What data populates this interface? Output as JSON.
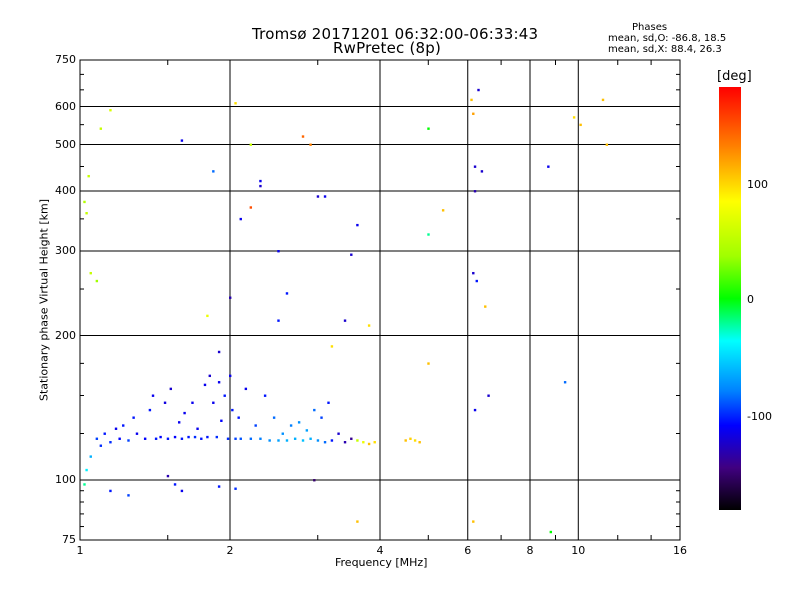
{
  "chart_data": {
    "type": "scatter",
    "title": "Tromsø 20171201 06:32:00-06:33:43",
    "subtitle": "RwPretec (8p)",
    "xlabel": "Frequency [MHz]",
    "ylabel": "Stationary phase Virtual Height [km]",
    "x_scale": "log",
    "y_scale": "log",
    "xlim": [
      1,
      16
    ],
    "ylim": [
      75,
      750
    ],
    "x_ticks": [
      "1",
      "2",
      "4",
      "6",
      "8",
      "10",
      "16"
    ],
    "y_ticks": [
      "750",
      "600",
      "500",
      "400",
      "300",
      "200",
      "100",
      "75"
    ],
    "grid": true,
    "phases": {
      "heading": "Phases",
      "line_o": "mean, sd,O: -86.8, 18.5",
      "line_x": "mean, sd,X:  88.4, 26.3"
    },
    "colorbar": {
      "label": "[deg]",
      "range": [
        -180,
        180
      ],
      "ticks": [
        "100",
        "0",
        "-100"
      ],
      "colors": [
        "#ff0000",
        "#ff8000",
        "#ffff00",
        "#00ff00",
        "#00ffff",
        "#0080ff",
        "#0000ff",
        "#000000"
      ]
    },
    "points": [
      [
        1.02,
        98,
        -20
      ],
      [
        1.03,
        105,
        -40
      ],
      [
        1.05,
        112,
        -60
      ],
      [
        1.08,
        122,
        -90
      ],
      [
        1.1,
        118,
        -95
      ],
      [
        1.12,
        125,
        -100
      ],
      [
        1.15,
        120,
        -95
      ],
      [
        1.18,
        128,
        -110
      ],
      [
        1.2,
        122,
        -105
      ],
      [
        1.22,
        130,
        -100
      ],
      [
        1.25,
        121,
        -90
      ],
      [
        1.28,
        135,
        -100
      ],
      [
        1.3,
        125,
        -110
      ],
      [
        1.35,
        122,
        -105
      ],
      [
        1.38,
        140,
        -100
      ],
      [
        1.4,
        150,
        -110
      ],
      [
        1.42,
        122,
        -100
      ],
      [
        1.45,
        123,
        -105
      ],
      [
        1.48,
        145,
        -115
      ],
      [
        1.5,
        122,
        -100
      ],
      [
        1.52,
        155,
        -120
      ],
      [
        1.55,
        123,
        -105
      ],
      [
        1.58,
        132,
        -110
      ],
      [
        1.6,
        122,
        -100
      ],
      [
        1.62,
        138,
        -110
      ],
      [
        1.65,
        123,
        -100
      ],
      [
        1.68,
        145,
        -110
      ],
      [
        1.7,
        123,
        -95
      ],
      [
        1.72,
        128,
        -110
      ],
      [
        1.75,
        122,
        -100
      ],
      [
        1.78,
        158,
        -110
      ],
      [
        1.8,
        123,
        -100
      ],
      [
        1.82,
        165,
        -120
      ],
      [
        1.85,
        145,
        -110
      ],
      [
        1.88,
        123,
        -95
      ],
      [
        1.9,
        160,
        -110
      ],
      [
        1.92,
        133,
        -105
      ],
      [
        1.95,
        150,
        -100
      ],
      [
        1.98,
        122,
        -95
      ],
      [
        2.0,
        165,
        -110
      ],
      [
        2.02,
        140,
        -100
      ],
      [
        2.05,
        122,
        -90
      ],
      [
        2.08,
        135,
        -100
      ],
      [
        2.1,
        122,
        -85
      ],
      [
        2.15,
        155,
        -110
      ],
      [
        2.2,
        122,
        -80
      ],
      [
        2.25,
        130,
        -90
      ],
      [
        2.3,
        122,
        -75
      ],
      [
        2.35,
        150,
        -100
      ],
      [
        2.4,
        121,
        -70
      ],
      [
        2.45,
        135,
        -80
      ],
      [
        2.5,
        121,
        -65
      ],
      [
        2.55,
        125,
        -70
      ],
      [
        2.6,
        121,
        -60
      ],
      [
        2.65,
        130,
        -75
      ],
      [
        2.7,
        122,
        -60
      ],
      [
        2.75,
        132,
        -70
      ],
      [
        2.8,
        121,
        -55
      ],
      [
        2.85,
        127,
        -65
      ],
      [
        2.9,
        122,
        -60
      ],
      [
        2.95,
        140,
        -80
      ],
      [
        3.0,
        121,
        -70
      ],
      [
        3.05,
        135,
        -90
      ],
      [
        3.1,
        120,
        -80
      ],
      [
        3.15,
        145,
        -100
      ],
      [
        3.2,
        121,
        -100
      ],
      [
        3.3,
        125,
        -120
      ],
      [
        3.4,
        120,
        -130
      ],
      [
        3.5,
        122,
        -140
      ],
      [
        3.6,
        121,
        60
      ],
      [
        3.7,
        120,
        80
      ],
      [
        3.8,
        119,
        110
      ],
      [
        3.9,
        120,
        100
      ],
      [
        4.5,
        121,
        110
      ],
      [
        4.6,
        122,
        105
      ],
      [
        4.7,
        121,
        100
      ],
      [
        4.8,
        120,
        110
      ],
      [
        1.55,
        98,
        -100
      ],
      [
        1.6,
        95,
        -110
      ],
      [
        1.9,
        97,
        -100
      ],
      [
        2.05,
        96,
        -95
      ],
      [
        1.25,
        93,
        -90
      ],
      [
        1.15,
        95,
        -100
      ],
      [
        1.05,
        270,
        60
      ],
      [
        1.08,
        260,
        40
      ],
      [
        1.02,
        380,
        50
      ],
      [
        1.03,
        360,
        60
      ],
      [
        1.04,
        430,
        60
      ],
      [
        1.1,
        540,
        60
      ],
      [
        1.15,
        590,
        70
      ],
      [
        1.6,
        510,
        -110
      ],
      [
        1.85,
        440,
        -80
      ],
      [
        2.05,
        610,
        100
      ],
      [
        2.2,
        500,
        60
      ],
      [
        2.3,
        410,
        -120
      ],
      [
        2.3,
        420,
        -110
      ],
      [
        2.5,
        300,
        -110
      ],
      [
        2.6,
        245,
        -100
      ],
      [
        2.8,
        520,
        140
      ],
      [
        2.9,
        500,
        130
      ],
      [
        3.0,
        390,
        -120
      ],
      [
        3.1,
        390,
        -110
      ],
      [
        3.5,
        295,
        -120
      ],
      [
        3.6,
        340,
        -110
      ],
      [
        5.0,
        540,
        0
      ],
      [
        5.0,
        325,
        -20
      ],
      [
        5.35,
        365,
        110
      ],
      [
        6.1,
        620,
        110
      ],
      [
        6.15,
        580,
        120
      ],
      [
        6.2,
        450,
        -120
      ],
      [
        6.2,
        400,
        -130
      ],
      [
        6.15,
        270,
        -120
      ],
      [
        6.2,
        140,
        -110
      ],
      [
        6.25,
        260,
        -100
      ],
      [
        6.3,
        650,
        -120
      ],
      [
        6.4,
        440,
        -120
      ],
      [
        6.5,
        230,
        110
      ],
      [
        6.6,
        150,
        -120
      ],
      [
        8.7,
        450,
        -110
      ],
      [
        9.4,
        160,
        -80
      ],
      [
        9.8,
        570,
        100
      ],
      [
        10.1,
        550,
        110
      ],
      [
        11.2,
        620,
        110
      ],
      [
        11.4,
        500,
        110
      ],
      [
        8.8,
        78,
        0
      ],
      [
        1.8,
        220,
        80
      ],
      [
        2.0,
        240,
        -130
      ],
      [
        2.1,
        350,
        -110
      ],
      [
        2.2,
        370,
        150
      ],
      [
        2.5,
        215,
        -100
      ],
      [
        3.4,
        215,
        -120
      ],
      [
        3.8,
        210,
        100
      ],
      [
        5.0,
        175,
        110
      ],
      [
        3.2,
        190,
        100
      ],
      [
        1.9,
        185,
        -120
      ],
      [
        3.6,
        82,
        110
      ],
      [
        2.95,
        100,
        -150
      ],
      [
        6.15,
        82,
        110
      ],
      [
        1.5,
        102,
        -130
      ]
    ]
  }
}
